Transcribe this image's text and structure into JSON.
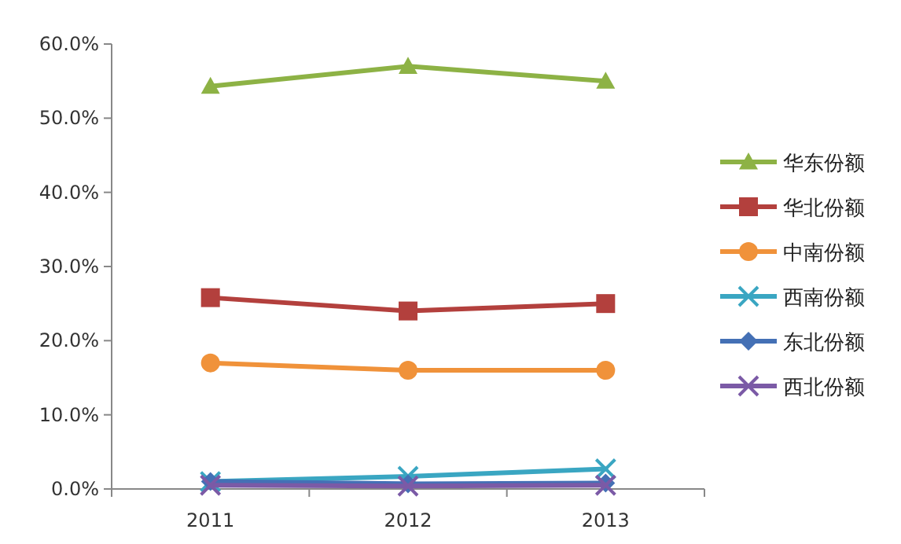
{
  "chart_data": {
    "type": "line",
    "categories": [
      "2011",
      "2012",
      "2013"
    ],
    "series": [
      {
        "name": "华东份额",
        "color": "#8db245",
        "marker": "triangle",
        "values": [
          54.3,
          57.0,
          55.0
        ]
      },
      {
        "name": "华北份额",
        "color": "#b3403d",
        "marker": "square",
        "values": [
          25.8,
          24.0,
          25.0
        ]
      },
      {
        "name": "中南份额",
        "color": "#f0923a",
        "marker": "circle",
        "values": [
          17.0,
          16.0,
          16.0
        ]
      },
      {
        "name": "西南份额",
        "color": "#3aa6c2",
        "marker": "cross",
        "values": [
          1.0,
          1.7,
          2.7
        ]
      },
      {
        "name": "东北份额",
        "color": "#4470b5",
        "marker": "diamond",
        "values": [
          1.0,
          0.7,
          0.8
        ]
      },
      {
        "name": "西北份额",
        "color": "#7b5aa6",
        "marker": "cross",
        "values": [
          0.5,
          0.4,
          0.5
        ]
      }
    ],
    "ylim": [
      0,
      60
    ],
    "yticks": [
      {
        "value": 0,
        "label": "0.0%"
      },
      {
        "value": 10,
        "label": "10.0%"
      },
      {
        "value": 20,
        "label": "20.0%"
      },
      {
        "value": 30,
        "label": "30.0%"
      },
      {
        "value": 40,
        "label": "40.0%"
      },
      {
        "value": 50,
        "label": "50.0%"
      },
      {
        "value": 60,
        "label": "60.0%"
      }
    ],
    "legend": "right"
  }
}
